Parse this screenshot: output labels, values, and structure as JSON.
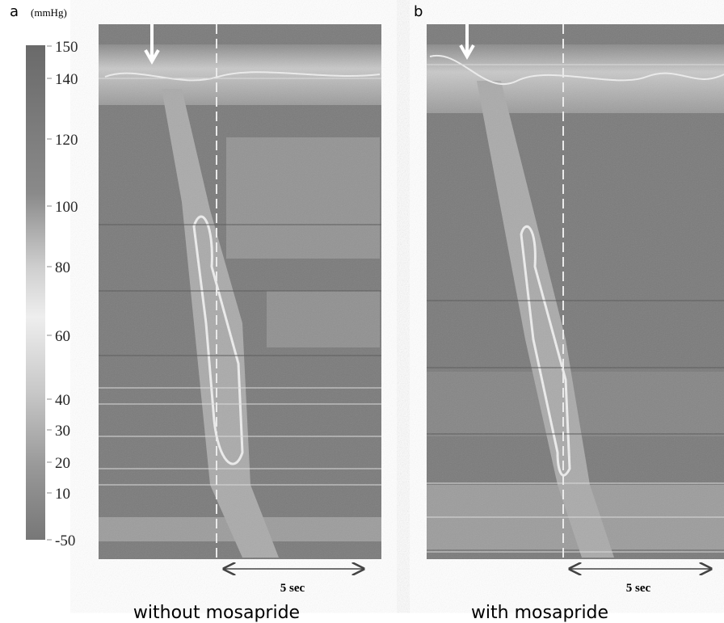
{
  "panels": [
    {
      "letter": "a",
      "caption": "without mosapride",
      "scale_label": "5 sec"
    },
    {
      "letter": "b",
      "caption": "with mosapride",
      "scale_label": "5 sec"
    }
  ],
  "colorbar": {
    "unit": "(mmHg)",
    "ticks": [
      150,
      140,
      120,
      100,
      80,
      60,
      40,
      30,
      20,
      10,
      -50
    ]
  }
}
